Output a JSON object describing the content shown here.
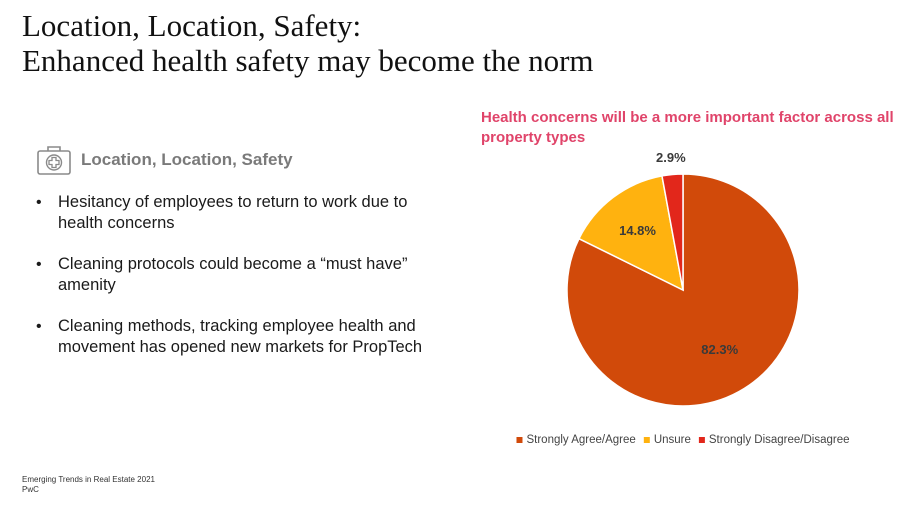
{
  "slide": {
    "title_line1": "Location, Location, Safety:",
    "title_line2": "Enhanced health safety may become the norm",
    "section_label": "Location, Location, Safety",
    "section_icon": "medical-kit-icon",
    "bullets": [
      "Hesitancy of employees to return to work due to health concerns",
      "Cleaning protocols could become a “must have” amenity",
      "Cleaning methods, tracking employee health and movement has opened new markets for PropTech"
    ],
    "footer_line1": "Emerging Trends in Real Estate 2021",
    "footer_line2": "PwC"
  },
  "chart_data": {
    "type": "pie",
    "title": "Health concerns will be a more important factor across all property types",
    "series": [
      {
        "name": "Strongly Agree/Agree",
        "value": 82.3,
        "label": "82.3%",
        "color": "#d14a0a"
      },
      {
        "name": "Unsure",
        "value": 14.8,
        "label": "14.8%",
        "color": "#ffb20f"
      },
      {
        "name": "Strongly Disagree/Disagree",
        "value": 2.9,
        "label": "2.9%",
        "color": "#e2271b"
      }
    ],
    "legend_position": "bottom"
  },
  "colors": {
    "title_accent": "#e0446a",
    "section_label": "#7a7a7a"
  }
}
